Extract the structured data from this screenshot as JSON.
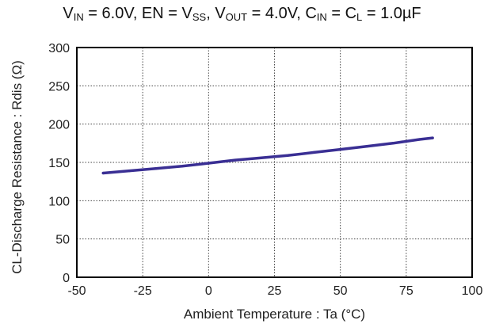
{
  "chart_data": {
    "type": "line",
    "title": {
      "vin_sym": "V",
      "vin_sub": "IN",
      "vin_val": " = 6.0V, EN = ",
      "vss_sym": "V",
      "vss_sub": "SS",
      "vout_sep": ", ",
      "vout_sym": "V",
      "vout_sub": "OUT",
      "vout_val": " = 4.0V, ",
      "cin_sym": "C",
      "cin_sub": "IN",
      "eq": " = ",
      "cl_sym": "C",
      "cl_sub": "L",
      "cap_val": " = 1.0µF"
    },
    "xlabel": "Ambient Temperature : Ta (°C)",
    "ylabel": "CL-Discharge Resistance : Rdis (Ω)",
    "xlim": [
      -50,
      100
    ],
    "ylim": [
      0,
      300
    ],
    "xticks": [
      "-50",
      "-25",
      "0",
      "25",
      "50",
      "75",
      "100"
    ],
    "yticks": [
      "0",
      "50",
      "100",
      "150",
      "200",
      "250",
      "300"
    ],
    "grid": true,
    "series": [
      {
        "color": "#3a2f94",
        "x": [
          -40,
          -30,
          -20,
          -10,
          0,
          10,
          20,
          30,
          40,
          50,
          60,
          70,
          80,
          85
        ],
        "y": [
          136,
          139,
          142,
          145,
          149,
          153,
          156,
          159,
          163,
          167,
          171,
          175,
          180,
          182
        ]
      }
    ]
  }
}
